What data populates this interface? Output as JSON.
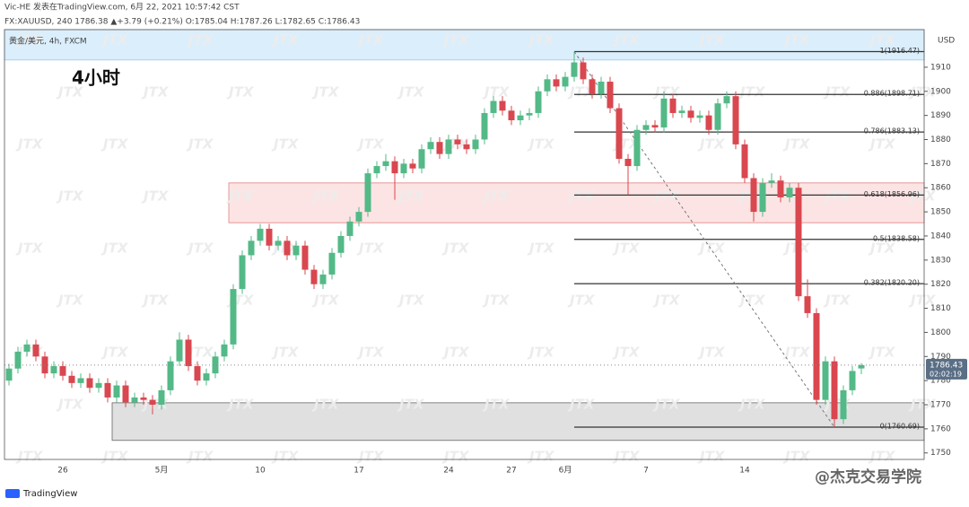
{
  "header": {
    "line1": "Vic-HE 发表在TradingView.com, 6月 22, 2021 10:57:42 CST",
    "line2": "FX:XAUUSD, 240 1786.38 ▲+3.79 (+0.21%) O:1785.04 H:1787.26 L:1782.65 C:1786.43"
  },
  "chart_data": {
    "type": "candlestick",
    "legend": "黄金/美元, 4h, FXCM",
    "annotation": "4小时",
    "axis_unit": "USD",
    "categories": [
      null,
      null,
      null,
      null,
      null,
      null,
      "26",
      null,
      null,
      null,
      null,
      null,
      null,
      null,
      null,
      null,
      null,
      "5月",
      null,
      null,
      null,
      null,
      null,
      null,
      null,
      null,
      null,
      null,
      "10",
      null,
      null,
      null,
      null,
      null,
      null,
      null,
      null,
      null,
      null,
      "17",
      null,
      null,
      null,
      null,
      null,
      null,
      null,
      null,
      null,
      "24",
      null,
      null,
      null,
      null,
      null,
      null,
      "27",
      null,
      null,
      null,
      null,
      null,
      "6月",
      null,
      null,
      null,
      null,
      null,
      null,
      null,
      null,
      "7",
      null,
      null,
      null,
      null,
      null,
      null,
      null,
      null,
      null,
      null,
      "14",
      null,
      null,
      null,
      null,
      null,
      null,
      null,
      null,
      null,
      null,
      null,
      null,
      null
    ],
    "open": [
      1780,
      1785,
      1792,
      1795,
      1790,
      1783,
      1786,
      1782,
      1779,
      1781,
      1777,
      1779,
      1773,
      1778,
      1771,
      1773,
      1772,
      1770,
      1776,
      1788,
      1797,
      1786,
      1780,
      1783,
      1790,
      1795,
      1818,
      1832,
      1838,
      1843,
      1836,
      1838,
      1832,
      1836,
      1826,
      1820,
      1824,
      1833,
      1840,
      1846,
      1850,
      1866,
      1869,
      1871,
      1866,
      1870,
      1868,
      1876,
      1879,
      1874,
      1880,
      1878,
      1876,
      1880,
      1891,
      1896,
      1892,
      1888,
      1890,
      1891,
      1900,
      1905,
      1902,
      1906,
      1912,
      1905,
      1899,
      1904,
      1893,
      1872,
      1869,
      1884,
      1886,
      1885,
      1897,
      1891,
      1892,
      1889,
      1890,
      1884,
      1895,
      1898,
      1878,
      1864,
      1850,
      1862,
      1863,
      1856,
      1860,
      1815,
      1808,
      1772,
      1788,
      1764,
      1776,
      1785.04
    ],
    "high": [
      1787,
      1794,
      1797,
      1797,
      1792,
      1788,
      1788,
      1784,
      1783,
      1783,
      1781,
      1781,
      1780,
      1780,
      1775,
      1775,
      1774,
      1778,
      1790,
      1800,
      1799,
      1788,
      1785,
      1792,
      1797,
      1820,
      1834,
      1840,
      1845,
      1845,
      1840,
      1840,
      1838,
      1838,
      1828,
      1826,
      1835,
      1842,
      1848,
      1852,
      1868,
      1871,
      1874,
      1873,
      1872,
      1872,
      1878,
      1881,
      1881,
      1882,
      1882,
      1880,
      1882,
      1893,
      1898,
      1898,
      1894,
      1892,
      1893,
      1902,
      1907,
      1907,
      1908,
      1916.47,
      1914,
      1907,
      1906,
      1906,
      1895,
      1874,
      1886,
      1888,
      1888,
      1900,
      1899,
      1894,
      1894,
      1892,
      1892,
      1897,
      1900,
      1900,
      1880,
      1866,
      1864,
      1866,
      1865,
      1862,
      1862,
      1822,
      1810,
      1790,
      1790,
      1778,
      1786,
      1787.26
    ],
    "low": [
      1778,
      1783,
      1790,
      1788,
      1781,
      1781,
      1780,
      1777,
      1777,
      1775,
      1775,
      1771,
      1771,
      1769,
      1769,
      1770,
      1766,
      1768,
      1774,
      1786,
      1784,
      1778,
      1778,
      1781,
      1788,
      1793,
      1816,
      1830,
      1836,
      1834,
      1834,
      1830,
      1830,
      1824,
      1818,
      1818,
      1822,
      1831,
      1838,
      1844,
      1848,
      1864,
      1867,
      1855,
      1864,
      1866,
      1866,
      1874,
      1872,
      1872,
      1876,
      1874,
      1874,
      1878,
      1889,
      1890,
      1886,
      1886,
      1888,
      1889,
      1898,
      1900,
      1900,
      1904,
      1903,
      1897,
      1897,
      1891,
      1870,
      1857,
      1867,
      1882,
      1883,
      1883,
      1889,
      1889,
      1887,
      1887,
      1882,
      1882,
      1893,
      1876,
      1862,
      1846,
      1848,
      1860,
      1854,
      1854,
      1813,
      1806,
      1770,
      1770,
      1760.69,
      1762,
      1774,
      1782.65
    ],
    "close": [
      1785,
      1792,
      1795,
      1790,
      1783,
      1786,
      1782,
      1779,
      1781,
      1777,
      1779,
      1773,
      1778,
      1771,
      1773,
      1772,
      1770,
      1776,
      1788,
      1797,
      1786,
      1780,
      1783,
      1790,
      1795,
      1818,
      1832,
      1838,
      1843,
      1836,
      1838,
      1832,
      1836,
      1826,
      1820,
      1824,
      1833,
      1840,
      1846,
      1850,
      1866,
      1869,
      1871,
      1866,
      1870,
      1868,
      1876,
      1879,
      1874,
      1880,
      1878,
      1876,
      1880,
      1891,
      1896,
      1892,
      1888,
      1890,
      1891,
      1900,
      1905,
      1902,
      1906,
      1912,
      1905,
      1899,
      1904,
      1893,
      1872,
      1869,
      1884,
      1886,
      1885,
      1897,
      1891,
      1892,
      1889,
      1890,
      1884,
      1895,
      1898,
      1878,
      1864,
      1850,
      1862,
      1863,
      1856,
      1860,
      1815,
      1808,
      1772,
      1788,
      1764,
      1776,
      1784,
      1786.43
    ],
    "up_color": "#53b987",
    "down_color": "#d9474f",
    "ylim": [
      1747.3,
      1925.6
    ],
    "yticks": [
      1750,
      1760,
      1770,
      1780,
      1790,
      1800,
      1810,
      1820,
      1830,
      1840,
      1850,
      1860,
      1870,
      1880,
      1890,
      1900,
      1910
    ],
    "last_price": 1786.43,
    "countdown": "02:02:19",
    "zones": [
      {
        "from": 1913,
        "to": 1925.6,
        "start": 0,
        "color": "#dbeefc"
      },
      {
        "from": 1845.5,
        "to": 1862,
        "start": 25,
        "color": "#fde4e4"
      },
      {
        "from": 1755.2,
        "to": 1770.8,
        "start": 12,
        "color": "#e0e0e0"
      }
    ],
    "fib": {
      "start": 63,
      "end": 92,
      "levels": [
        {
          "value": 1916.47,
          "label": "1(1916.47)"
        },
        {
          "value": 1898.71,
          "label": "0.886(1898.71)"
        },
        {
          "value": 1883.13,
          "label": "0.786(1883.13)"
        },
        {
          "value": 1856.96,
          "label": "0.618(1856.96)"
        },
        {
          "value": 1838.58,
          "label": "0.5(1838.58)"
        },
        {
          "value": 1820.2,
          "label": "0.382(1820.20)"
        },
        {
          "value": 1760.69,
          "label": "0(1760.69)"
        }
      ]
    },
    "watermark": "JTX"
  },
  "footer": {
    "logo": "TradingView",
    "credit": "@杰克交易学院"
  }
}
